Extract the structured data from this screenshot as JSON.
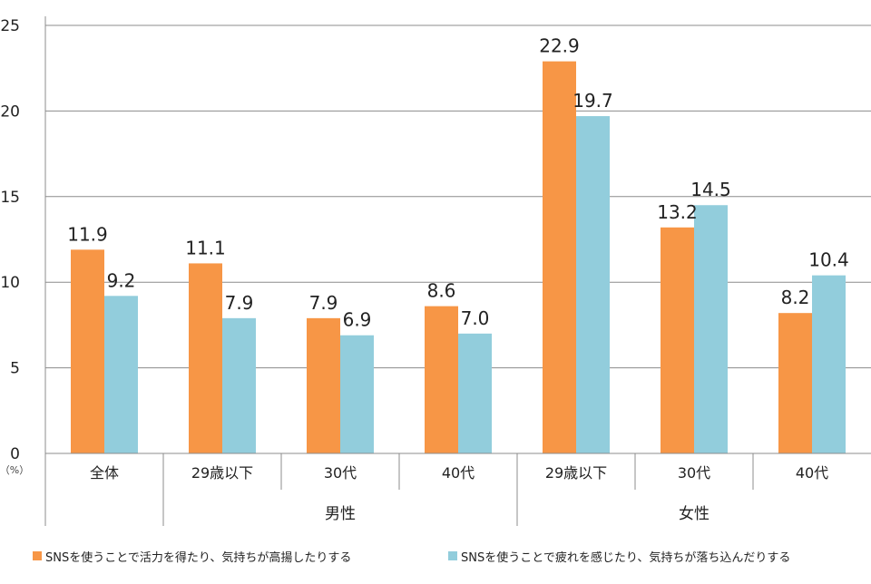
{
  "chart_data": {
    "type": "bar",
    "title": "",
    "xlabel": "",
    "ylabel": "",
    "unit_label": "（%）",
    "ylim": [
      0,
      25
    ],
    "yticks": [
      0,
      5,
      10,
      15,
      20,
      25
    ],
    "categories": [
      "全体",
      "29歳以下",
      "30代",
      "40代",
      "29歳以下",
      "30代",
      "40代"
    ],
    "groups": [
      {
        "label": "男性",
        "category_indices": [
          1,
          2,
          3
        ]
      },
      {
        "label": "女性",
        "category_indices": [
          4,
          5,
          6
        ]
      }
    ],
    "series": [
      {
        "name": "SNSを使うことで活力を得たり、気持ちが高揚したりする",
        "color": "#F79646",
        "values": [
          11.9,
          11.1,
          7.9,
          8.6,
          22.9,
          13.2,
          8.2
        ],
        "labels": [
          "11.9",
          "11.1",
          "7.9",
          "8.6",
          "22.9",
          "13.2",
          "8.2"
        ]
      },
      {
        "name": "SNSを使うことで疲れを感じたり、気持ちが落ち込んだりする",
        "color": "#92CDDC",
        "values": [
          9.2,
          7.9,
          6.9,
          7.0,
          19.7,
          14.5,
          10.4
        ],
        "labels": [
          "9.2",
          "7.9",
          "6.9",
          "7.0",
          "19.7",
          "14.5",
          "10.4"
        ]
      }
    ],
    "legend_position": "bottom"
  }
}
